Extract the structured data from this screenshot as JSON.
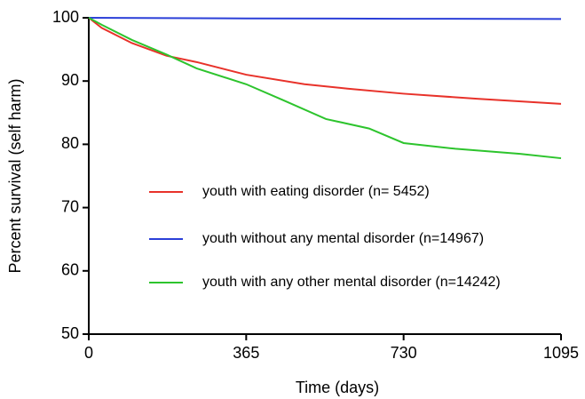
{
  "chart_data": {
    "type": "line",
    "xlabel": "Time (days)",
    "ylabel": "Percent survival (self harm)",
    "xlim": [
      0,
      1095
    ],
    "xticks": [
      0,
      365,
      730,
      1095
    ],
    "ylim": [
      50,
      100
    ],
    "yticks": [
      50,
      60,
      70,
      80,
      90,
      100
    ],
    "grid": false,
    "legend": "center-left",
    "series": [
      {
        "name": "youth with eating disorder (n= 5452)",
        "color": "#e8322a",
        "x": [
          0,
          30,
          100,
          180,
          250,
          365,
          500,
          600,
          730,
          900,
          1095
        ],
        "values": [
          100,
          98.4,
          96.0,
          94.0,
          93.0,
          91.0,
          89.5,
          88.8,
          88.0,
          87.2,
          86.4
        ]
      },
      {
        "name": "youth without any mental disorder (n=14967)",
        "color": "#2b3fd8",
        "x": [
          0,
          365,
          730,
          1095
        ],
        "values": [
          100,
          99.9,
          99.85,
          99.8
        ]
      },
      {
        "name": "youth with any other mental disorder (n=14242)",
        "color": "#2dc42d",
        "x": [
          0,
          30,
          100,
          180,
          250,
          365,
          450,
          550,
          650,
          730,
          850,
          1000,
          1095
        ],
        "values": [
          100,
          98.9,
          96.5,
          94.2,
          92.0,
          89.5,
          87.0,
          84.0,
          82.5,
          80.2,
          79.3,
          78.5,
          77.8
        ]
      }
    ]
  }
}
